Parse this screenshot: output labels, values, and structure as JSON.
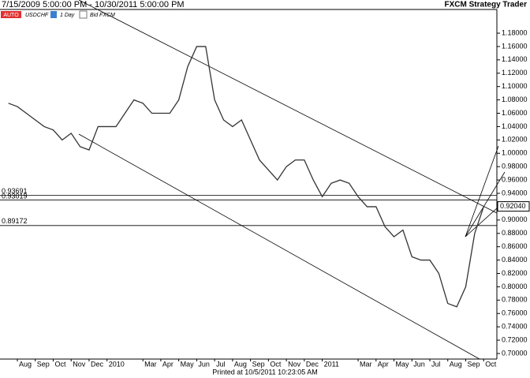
{
  "chart_data": {
    "type": "line",
    "title": "7/15/2009 5:00:00 PM - 10/30/2011 5:00:00 PM",
    "brand": "FXCM Strategy Trader",
    "toolbar": [
      "AUTO",
      "USDCHF",
      "1 Day",
      "Bid FXCM"
    ],
    "footer": "Printed at 10/5/2011 10:23:05 AM",
    "categories": [
      null,
      "Aug",
      null,
      "Sep",
      null,
      "Oct",
      null,
      "Nov",
      null,
      "Dec",
      null,
      "2010",
      null,
      null,
      null,
      "Mar",
      null,
      "Apr",
      null,
      "May",
      null,
      "Jun",
      null,
      "Jul",
      null,
      "Aug",
      null,
      "Sep",
      null,
      "Oct",
      null,
      "Nov",
      null,
      "Dec",
      null,
      "2011",
      null,
      null,
      null,
      "Mar",
      null,
      "Apr",
      null,
      "May",
      null,
      "Jun",
      null,
      "Jul",
      null,
      "Aug",
      null,
      "Sep",
      null,
      "Oct"
    ],
    "series": [
      {
        "name": "USDCHF",
        "color": "#333333",
        "values": [
          1.075,
          1.07,
          1.06,
          1.05,
          1.04,
          1.035,
          1.02,
          1.03,
          1.01,
          1.005,
          1.04,
          1.04,
          1.04,
          1.06,
          1.08,
          1.075,
          1.06,
          1.06,
          1.06,
          1.08,
          1.13,
          1.16,
          1.16,
          1.08,
          1.05,
          1.04,
          1.05,
          1.02,
          0.99,
          0.975,
          0.96,
          0.98,
          0.99,
          0.99,
          0.96,
          0.935,
          0.955,
          0.96,
          0.955,
          0.935,
          0.92,
          0.92,
          0.89,
          0.875,
          0.885,
          0.845,
          0.84,
          0.84,
          0.82,
          0.775,
          0.77,
          0.8,
          0.88,
          0.92
        ]
      }
    ],
    "levels": [
      0.93691,
      0.93019,
      0.89172
    ],
    "last_price": {
      "value": 0.9204,
      "label": "0.92040"
    },
    "ylim": [
      0.6917,
      1.2155
    ],
    "yticks": [
      {
        "value": 0.7,
        "label": "0.70000"
      },
      {
        "value": 0.72,
        "label": "0.72000"
      },
      {
        "value": 0.74,
        "label": "0.74000"
      },
      {
        "value": 0.76,
        "label": "0.76000"
      },
      {
        "value": 0.78,
        "label": "0.78000"
      },
      {
        "value": 0.8,
        "label": "0.80000"
      },
      {
        "value": 0.82,
        "label": "0.82000"
      },
      {
        "value": 0.84,
        "label": "0.84000"
      },
      {
        "value": 0.86,
        "label": "0.86000"
      },
      {
        "value": 0.88,
        "label": "0.88000"
      },
      {
        "value": 0.9,
        "label": "0.90000"
      },
      {
        "value": 0.92,
        "label": "0.92000"
      },
      {
        "value": 0.94,
        "label": "0.94000"
      },
      {
        "value": 0.96,
        "label": "0.96000"
      },
      {
        "value": 0.98,
        "label": "0.98000"
      },
      {
        "value": 1.0,
        "label": "1.00000"
      },
      {
        "value": 1.02,
        "label": "1.02000"
      },
      {
        "value": 1.04,
        "label": "1.04000"
      },
      {
        "value": 1.06,
        "label": "1.06000"
      },
      {
        "value": 1.08,
        "label": "1.08000"
      },
      {
        "value": 1.1,
        "label": "1.10000"
      },
      {
        "value": 1.12,
        "label": "1.12000"
      },
      {
        "value": 1.14,
        "label": "1.14000"
      },
      {
        "value": 1.16,
        "label": "1.16000"
      },
      {
        "value": 1.18,
        "label": "1.18000"
      }
    ]
  }
}
